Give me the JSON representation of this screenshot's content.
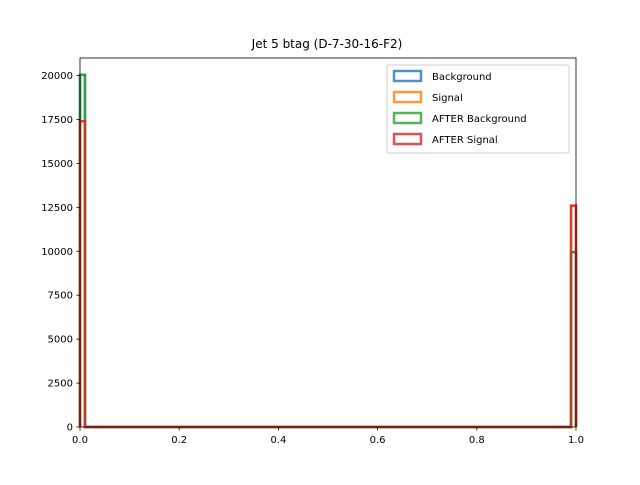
{
  "chart_data": {
    "type": "histogram",
    "title": "Jet 5 btag (D-7-30-16-F2)",
    "xlabel": "",
    "ylabel": "",
    "xlim": [
      0,
      1
    ],
    "ylim": [
      0,
      21000
    ],
    "grid": false,
    "legend_position": "top-right",
    "x_ticks": [
      "0.0",
      "0.2",
      "0.4",
      "0.6",
      "0.8",
      "1.0"
    ],
    "y_ticks": [
      "0",
      "2500",
      "5000",
      "7500",
      "10000",
      "12500",
      "15000",
      "17500",
      "20000"
    ],
    "bins": [
      0.0,
      0.01,
      0.99,
      1.0
    ],
    "series": [
      {
        "name": "Background",
        "color": "#1f77b4",
        "counts": [
          20050,
          0,
          9950
        ]
      },
      {
        "name": "Signal",
        "color": "#ff7f0e",
        "counts": [
          17400,
          0,
          12600
        ]
      },
      {
        "name": "AFTER Background",
        "color": "#2ca02c",
        "counts": [
          20050,
          0,
          9950
        ]
      },
      {
        "name": "AFTER Signal",
        "color": "#d62728",
        "counts": [
          17400,
          0,
          12600
        ]
      }
    ]
  }
}
